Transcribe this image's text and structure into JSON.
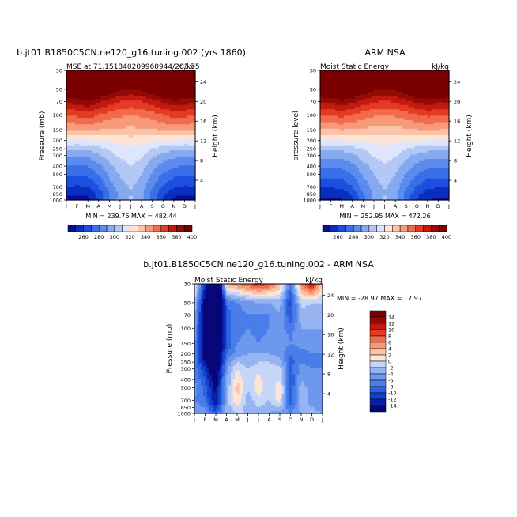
{
  "chart_data": [
    {
      "type": "heatmap",
      "title": "b.jt01.B1850C5CN.ne120_g16.tuning.002 (yrs 1860)",
      "subtitle_left": "MSE at 71.151840209960944/203.75",
      "subtitle_right": "kJ/kg",
      "ylabel": "Pressure (mb)",
      "ylabel_right": "Height (km)",
      "x_ticks": [
        "J",
        "F",
        "M",
        "A",
        "M",
        "J",
        "J",
        "A",
        "S",
        "O",
        "N",
        "D",
        "J"
      ],
      "y_ticks": [
        "30",
        "50",
        "70",
        "100",
        "150",
        "200",
        "250",
        "300",
        "400",
        "500",
        "700",
        "850",
        "1000"
      ],
      "y_ticks_right": [
        "24",
        "20",
        "16",
        "12",
        "8",
        "4"
      ],
      "min_max": "MIN = 239.76 MAX = 482.44",
      "colorbar_labels": [
        "260",
        "280",
        "300",
        "320",
        "340",
        "360",
        "380",
        "400"
      ],
      "scale": "log-pressure",
      "months": [
        1,
        2,
        3,
        4,
        5,
        6,
        7,
        8,
        9,
        10,
        11,
        12,
        13
      ],
      "level_bounds": [
        260,
        270,
        280,
        290,
        300,
        310,
        320,
        330,
        340,
        350,
        360,
        370,
        380,
        390,
        400
      ],
      "profile_rows": [
        [
          1000,
          256,
          255,
          256,
          270,
          290,
          305,
          312,
          305,
          285,
          268,
          258,
          255,
          256
        ],
        [
          850,
          262,
          261,
          262,
          273,
          290,
          303,
          310,
          303,
          287,
          272,
          263,
          261,
          262
        ],
        [
          700,
          270,
          269,
          270,
          280,
          295,
          306,
          311,
          305,
          291,
          279,
          271,
          269,
          270
        ],
        [
          500,
          282,
          281,
          282,
          290,
          302,
          311,
          316,
          310,
          298,
          289,
          283,
          281,
          282
        ],
        [
          400,
          290,
          289,
          290,
          297,
          307,
          315,
          320,
          315,
          303,
          296,
          291,
          289,
          290
        ],
        [
          300,
          302,
          301,
          302,
          308,
          316,
          322,
          326,
          322,
          312,
          306,
          303,
          301,
          302
        ],
        [
          250,
          312,
          311,
          312,
          316,
          321,
          326,
          329,
          326,
          319,
          315,
          313,
          311,
          312
        ],
        [
          200,
          330,
          330,
          330,
          332,
          333,
          334,
          335,
          334,
          333,
          332,
          331,
          330,
          330
        ],
        [
          150,
          350,
          350,
          351,
          350,
          349,
          348,
          348,
          348,
          349,
          351,
          352,
          351,
          350
        ],
        [
          100,
          372,
          373,
          376,
          370,
          365,
          362,
          361,
          362,
          365,
          370,
          374,
          373,
          372
        ],
        [
          70,
          392,
          394,
          400,
          392,
          385,
          380,
          378,
          380,
          385,
          392,
          396,
          394,
          392
        ],
        [
          50,
          420,
          422,
          430,
          420,
          410,
          403,
          400,
          403,
          410,
          420,
          425,
          422,
          420
        ],
        [
          30,
          470,
          470,
          475,
          470,
          460,
          450,
          445,
          450,
          460,
          470,
          475,
          470,
          470
        ]
      ]
    },
    {
      "type": "heatmap",
      "title": "ARM NSA",
      "subtitle_left": "Moist Static Energy",
      "subtitle_right": "kJ/kg",
      "ylabel": "pressure level",
      "ylabel_right": "Height (km)",
      "x_ticks": [
        "J",
        "F",
        "M",
        "A",
        "M",
        "J",
        "J",
        "A",
        "S",
        "O",
        "N",
        "D",
        "J"
      ],
      "y_ticks": [
        "30",
        "50",
        "70",
        "100",
        "150",
        "200",
        "250",
        "300",
        "400",
        "500",
        "700",
        "850",
        "1000"
      ],
      "y_ticks_right": [
        "24",
        "20",
        "16",
        "12",
        "8",
        "4"
      ],
      "min_max": "MIN = 252.95 MAX = 472.26",
      "colorbar_labels": [
        "260",
        "280",
        "300",
        "320",
        "340",
        "360",
        "380",
        "400"
      ],
      "scale": "log-pressure",
      "months": [
        1,
        2,
        3,
        4,
        5,
        6,
        7,
        8,
        9,
        10,
        11,
        12,
        13
      ],
      "level_bounds": [
        260,
        270,
        280,
        290,
        300,
        310,
        320,
        330,
        340,
        350,
        360,
        370,
        380,
        390,
        400
      ],
      "profile_rows": [
        [
          1000,
          258,
          258,
          259,
          268,
          288,
          303,
          312,
          304,
          286,
          270,
          260,
          258,
          258
        ],
        [
          850,
          263,
          263,
          264,
          272,
          289,
          302,
          310,
          302,
          287,
          273,
          264,
          263,
          263
        ],
        [
          700,
          271,
          271,
          272,
          280,
          294,
          305,
          311,
          305,
          292,
          280,
          272,
          271,
          271
        ],
        [
          500,
          283,
          283,
          284,
          290,
          301,
          310,
          316,
          310,
          299,
          290,
          284,
          283,
          283
        ],
        [
          400,
          291,
          291,
          292,
          297,
          306,
          314,
          319,
          314,
          304,
          297,
          292,
          291,
          291
        ],
        [
          300,
          303,
          303,
          304,
          308,
          315,
          321,
          325,
          321,
          313,
          307,
          304,
          303,
          303
        ],
        [
          250,
          313,
          313,
          313,
          316,
          320,
          325,
          328,
          325,
          320,
          316,
          314,
          313,
          313
        ],
        [
          200,
          330,
          330,
          330,
          331,
          332,
          333,
          334,
          333,
          332,
          331,
          330,
          330,
          330
        ],
        [
          150,
          349,
          349,
          350,
          349,
          348,
          347,
          347,
          347,
          348,
          350,
          351,
          350,
          349
        ],
        [
          100,
          371,
          372,
          374,
          370,
          365,
          362,
          361,
          362,
          365,
          370,
          373,
          372,
          371
        ],
        [
          70,
          390,
          392,
          396,
          392,
          386,
          381,
          379,
          381,
          386,
          392,
          395,
          392,
          390
        ],
        [
          50,
          418,
          420,
          425,
          418,
          409,
          403,
          400,
          403,
          409,
          418,
          422,
          420,
          418
        ],
        [
          30,
          465,
          466,
          470,
          466,
          458,
          450,
          446,
          450,
          458,
          466,
          470,
          466,
          465
        ]
      ]
    },
    {
      "type": "heatmap",
      "title": "b.jt01.B1850C5CN.ne120_g16.tuning.002 - ARM NSA",
      "subtitle_left": "Moist Static Energy",
      "subtitle_right": "kJ/kg",
      "ylabel": "Pressure (mb)",
      "ylabel_right": "Height (km)",
      "x_ticks": [
        "J",
        "F",
        "M",
        "A",
        "M",
        "J",
        "J",
        "A",
        "S",
        "O",
        "N",
        "D",
        "J"
      ],
      "y_ticks": [
        "30",
        "50",
        "70",
        "100",
        "150",
        "200",
        "250",
        "300",
        "400",
        "500",
        "700",
        "850",
        "1000"
      ],
      "y_ticks_right": [
        "24",
        "20",
        "16",
        "12",
        "8",
        "4"
      ],
      "min_max": "MIN = -28.97 MAX =   17.97",
      "colorbar_labels": [
        "14",
        "12",
        "10",
        "8",
        "6",
        "4",
        "2",
        "0",
        "-2",
        "-4",
        "-6",
        "-8",
        "-10",
        "-12",
        "-14"
      ],
      "scale": "log-pressure",
      "months": [
        1,
        2,
        3,
        4,
        5,
        6,
        7,
        8,
        9,
        10,
        11,
        12,
        13
      ],
      "level_bounds": [
        -14,
        -12,
        -10,
        -8,
        -6,
        -4,
        -2,
        0,
        2,
        4,
        6,
        8,
        10,
        12,
        14
      ],
      "profile_rows": [
        [
          1000,
          -4,
          -5,
          -9,
          -3,
          -2,
          -2,
          -3,
          -4,
          -5,
          -6,
          -4,
          -3,
          -4
        ],
        [
          850,
          -5,
          -6,
          -12,
          -3,
          -1,
          -3,
          -2,
          -3,
          -2,
          -8,
          -3,
          -4,
          -5
        ],
        [
          700,
          -6,
          -8,
          -14,
          -3,
          2,
          -3,
          -1,
          -2,
          1,
          -10,
          -3,
          -5,
          -6
        ],
        [
          500,
          -5,
          -9,
          -15,
          -4,
          3,
          -2,
          2,
          -2,
          2,
          -10,
          -3,
          -5,
          -5
        ],
        [
          400,
          -6,
          -10,
          -16,
          -4,
          2,
          -2,
          1,
          -2,
          0,
          -10,
          -4,
          -6,
          -6
        ],
        [
          300,
          -6,
          -12,
          -18,
          -5,
          0,
          -2,
          -1,
          -1,
          -1,
          -9,
          -5,
          -6,
          -6
        ],
        [
          250,
          -7,
          -14,
          -20,
          -6,
          -2,
          -3,
          -2,
          -2,
          -3,
          -9,
          -6,
          -7,
          -7
        ],
        [
          200,
          -6,
          -16,
          -20,
          -8,
          -5,
          -4,
          -4,
          -4,
          -5,
          -8,
          -7,
          -6,
          -6
        ],
        [
          150,
          -5,
          -17,
          -21,
          -10,
          -6,
          -5,
          -6,
          -5,
          -4,
          -6,
          -5,
          -5,
          -5
        ],
        [
          100,
          -4,
          -18,
          -22,
          -9,
          -7,
          -6,
          -7,
          -6,
          -5,
          -7,
          -4,
          -4,
          -4
        ],
        [
          70,
          -3,
          -18,
          -24,
          -9,
          -7,
          -6,
          -6,
          -6,
          -4,
          -10,
          -3,
          -4,
          -3
        ],
        [
          50,
          -2,
          -16,
          -26,
          -8,
          -6,
          -5,
          -4,
          -4,
          -3,
          -11,
          -1,
          -2,
          -2
        ],
        [
          30,
          2,
          -12,
          -28,
          4,
          6,
          8,
          10,
          8,
          4,
          -8,
          6,
          12,
          2
        ]
      ]
    }
  ],
  "colors": {
    "mse_palette": [
      "#0b0b96",
      "#0a2fbf",
      "#1c4fe0",
      "#3b6fe8",
      "#5b8ced",
      "#86aaf0",
      "#b3c8f5",
      "#dde6fb",
      "#fde4d5",
      "#fbc4aa",
      "#f89a7a",
      "#f26b4b",
      "#e33b24",
      "#c21a10",
      "#930a06",
      "#7a0000"
    ],
    "diff_palette": [
      "#07077a",
      "#0a1fa6",
      "#1440cf",
      "#2b60e3",
      "#4a7de9",
      "#6e98ed",
      "#97b4f2",
      "#c6d6f8",
      "#fde4d5",
      "#fbc4aa",
      "#f89a7a",
      "#f26b4b",
      "#e33b24",
      "#c21a10",
      "#930a06",
      "#7a0000"
    ]
  }
}
